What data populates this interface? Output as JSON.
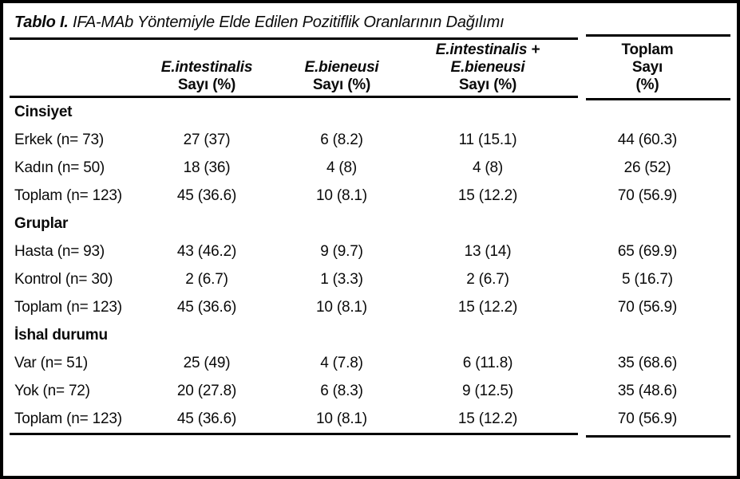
{
  "title": {
    "prefix": "Tablo I.",
    "rest": "IFA-MAb Yöntemiyle Elde Edilen Pozitiflik Oranlarının Dağılımı"
  },
  "header": {
    "col2": [
      "E.intestinalis",
      "Sayı (%)"
    ],
    "col3": [
      "E.bieneusi",
      "Sayı (%)"
    ],
    "col4": [
      "E.intestinalis +",
      "E.bieneusi",
      "Sayı (%)"
    ],
    "col5": [
      "Toplam",
      "Sayı",
      "(%)"
    ]
  },
  "sections": [
    {
      "name": "Cinsiyet",
      "rows": [
        {
          "label": "Erkek (n= 73)",
          "values": [
            "27 (37)",
            "6 (8.2)",
            "11 (15.1)",
            "44 (60.3)"
          ]
        },
        {
          "label": "Kadın (n= 50)",
          "values": [
            "18 (36)",
            "4 (8)",
            "4 (8)",
            "26 (52)"
          ]
        },
        {
          "label": "Toplam (n= 123)",
          "values": [
            "45 (36.6)",
            "10 (8.1)",
            "15 (12.2)",
            "70 (56.9)"
          ]
        }
      ]
    },
    {
      "name": "Gruplar",
      "rows": [
        {
          "label": "Hasta (n= 93)",
          "values": [
            "43 (46.2)",
            "9 (9.7)",
            "13 (14)",
            "65 (69.9)"
          ]
        },
        {
          "label": "Kontrol (n= 30)",
          "values": [
            "2 (6.7)",
            "1 (3.3)",
            "2 (6.7)",
            "5 (16.7)"
          ]
        },
        {
          "label": "Toplam (n= 123)",
          "values": [
            "45 (36.6)",
            "10 (8.1)",
            "15 (12.2)",
            "70 (56.9)"
          ]
        }
      ]
    },
    {
      "name": "İshal durumu",
      "rows": [
        {
          "label": "Var (n= 51)",
          "values": [
            "25 (49)",
            "4 (7.8)",
            "6 (11.8)",
            "35 (68.6)"
          ]
        },
        {
          "label": "Yok (n= 72)",
          "values": [
            "20 (27.8)",
            "6 (8.3)",
            "9 (12.5)",
            "35 (48.6)"
          ]
        },
        {
          "label": "Toplam (n= 123)",
          "values": [
            "45 (36.6)",
            "10 (8.1)",
            "15 (12.2)",
            "70 (56.9)"
          ]
        }
      ]
    }
  ],
  "colors": {
    "border": "#000000",
    "text": "#0a0a0a",
    "background": "#ffffff"
  }
}
